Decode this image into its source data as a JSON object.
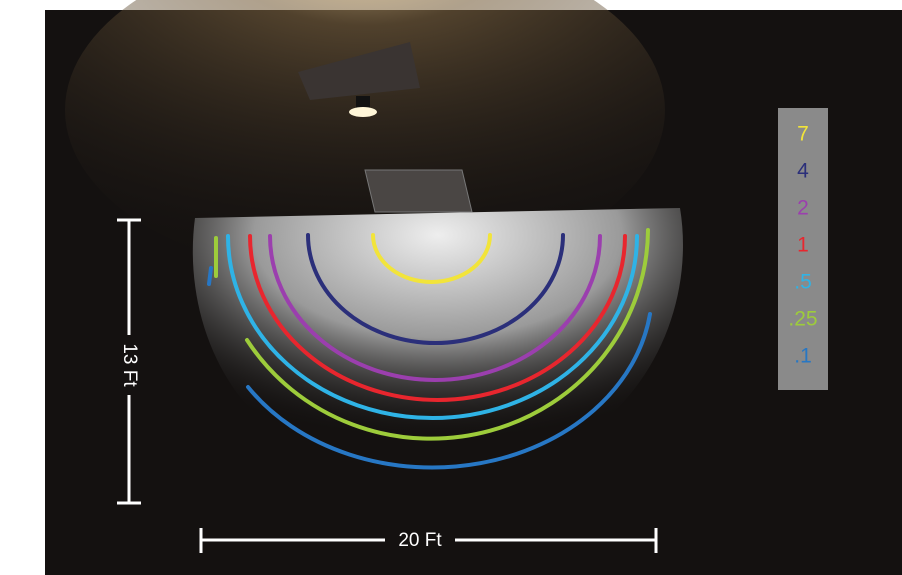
{
  "dimensions": {
    "height": "13 Ft",
    "width": "20 Ft"
  },
  "legend": [
    {
      "label": "7",
      "color": "#f2e43a"
    },
    {
      "label": "4",
      "color": "#2b2f7a"
    },
    {
      "label": "2",
      "color": "#9b3fae"
    },
    {
      "label": "1",
      "color": "#e8262e"
    },
    {
      "label": ".5",
      "color": "#2fb3e6"
    },
    {
      "label": ".25",
      "color": "#9dcc3b"
    },
    {
      "label": ".1",
      "color": "#2777c4"
    }
  ]
}
